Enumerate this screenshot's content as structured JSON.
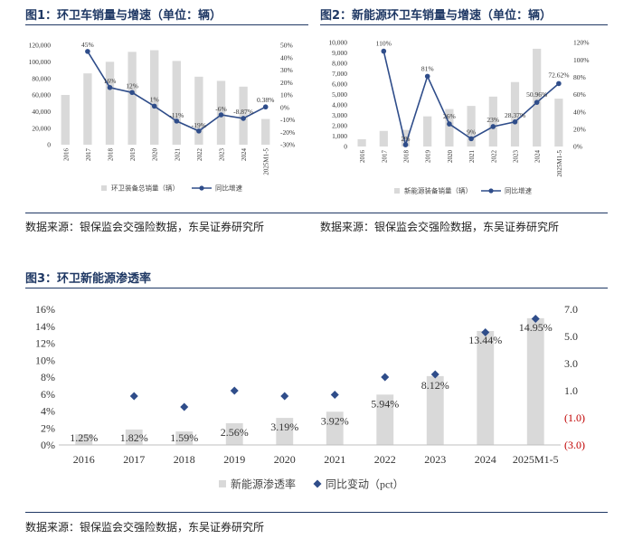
{
  "figures": [
    {
      "title": "图1：环卫车销量与增速（单位：辆）",
      "source": "数据来源：银保监会交强险数据，东吴证券研究所"
    },
    {
      "title": "图2：新能源环卫车销量与增速（单位：辆）",
      "source": "数据来源：银保监会交强险数据，东吴证券研究所"
    },
    {
      "title": "图3：环卫新能源渗透率",
      "source": "数据来源：银保监会交强险数据，东吴证券研究所"
    }
  ],
  "chart_data": [
    {
      "type": "bar",
      "categories": [
        "2016",
        "2017",
        "2018",
        "2019",
        "2020",
        "2021",
        "2022",
        "2023",
        "2024",
        "2025M1-5"
      ],
      "series": [
        {
          "name": "环卫装备总销量（辆）",
          "type": "bar",
          "axis": "left",
          "color": "#d9d9d9",
          "values": [
            60000,
            86000,
            100000,
            112000,
            114000,
            101000,
            82000,
            77000,
            70000,
            31000
          ]
        },
        {
          "name": "同比增速",
          "type": "line",
          "axis": "right",
          "color": "#2f4d8a",
          "values": [
            null,
            45,
            16,
            12,
            1,
            -11,
            -19,
            -6,
            -8.87,
            0.38
          ],
          "labels": [
            "",
            "45%",
            "16%",
            "12%",
            "1%",
            "-11%",
            "-19%",
            "-6%",
            "-8.87%",
            "0.38%"
          ]
        }
      ],
      "yleft": {
        "ticks": [
          0,
          20000,
          40000,
          60000,
          80000,
          100000,
          120000
        ],
        "tick_labels": [
          "0",
          "20,000",
          "40,000",
          "60,000",
          "80,000",
          "100,000",
          "120,000"
        ],
        "lim": [
          0,
          120000
        ]
      },
      "yright": {
        "ticks": [
          -30,
          -20,
          -10,
          0,
          10,
          20,
          30,
          40,
          50
        ],
        "tick_labels": [
          "-30%",
          "-20%",
          "-10%",
          "0%",
          "10%",
          "20%",
          "30%",
          "40%",
          "50%"
        ],
        "lim": [
          -30,
          50
        ]
      },
      "grid": false,
      "legend": "bottom"
    },
    {
      "type": "bar",
      "categories": [
        "2016",
        "2017",
        "2018",
        "2019",
        "2020",
        "2021",
        "2022",
        "2023",
        "2024",
        "2025M1-5"
      ],
      "series": [
        {
          "name": "新能源装备销量（辆）",
          "type": "bar",
          "axis": "left",
          "color": "#d9d9d9",
          "values": [
            700,
            1500,
            1600,
            2900,
            3600,
            3900,
            4800,
            6200,
            9400,
            4600
          ]
        },
        {
          "name": "同比增速",
          "type": "line",
          "axis": "right",
          "color": "#2f4d8a",
          "values": [
            null,
            110,
            2,
            81,
            26,
            9,
            23,
            28.37,
            50.96,
            72.62
          ],
          "labels": [
            "",
            "110%",
            "2%",
            "81%",
            "26%",
            "9%",
            "23%",
            "28.37%",
            "50.96%",
            "72.62%"
          ]
        }
      ],
      "yleft": {
        "ticks": [
          0,
          1000,
          2000,
          3000,
          4000,
          5000,
          6000,
          7000,
          8000,
          9000,
          10000
        ],
        "tick_labels": [
          "0",
          "1,000",
          "2,000",
          "3,000",
          "4,000",
          "5,000",
          "6,000",
          "7,000",
          "8,000",
          "9,000",
          "10,000"
        ],
        "lim": [
          0,
          10000
        ]
      },
      "yright": {
        "ticks": [
          0,
          20,
          40,
          60,
          80,
          100,
          120
        ],
        "tick_labels": [
          "0%",
          "20%",
          "40%",
          "60%",
          "80%",
          "100%",
          "120%"
        ],
        "lim": [
          0,
          120
        ]
      },
      "grid": false,
      "legend": "bottom"
    },
    {
      "type": "bar",
      "categories": [
        "2016",
        "2017",
        "2018",
        "2019",
        "2020",
        "2021",
        "2022",
        "2023",
        "2024",
        "2025M1-5"
      ],
      "series": [
        {
          "name": "新能源渗透率",
          "type": "bar",
          "axis": "left",
          "color": "#d9d9d9",
          "values": [
            1.25,
            1.82,
            1.59,
            2.56,
            3.19,
            3.92,
            5.94,
            8.12,
            13.44,
            14.95
          ],
          "labels": [
            "1.25%",
            "1.82%",
            "1.59%",
            "2.56%",
            "3.19%",
            "3.92%",
            "5.94%",
            "8.12%",
            "13.44%",
            "14.95%"
          ]
        },
        {
          "name": "同比变动（pct）",
          "type": "scatter",
          "axis": "right",
          "color": "#2f4d8a",
          "values": [
            null,
            0.6,
            -0.2,
            1.0,
            0.6,
            0.7,
            2.0,
            2.2,
            5.3,
            6.3
          ]
        }
      ],
      "yleft": {
        "ticks": [
          0,
          2,
          4,
          6,
          8,
          10,
          12,
          14,
          16
        ],
        "tick_labels": [
          "0%",
          "2%",
          "4%",
          "6%",
          "8%",
          "10%",
          "12%",
          "14%",
          "16%"
        ],
        "lim": [
          0,
          16
        ]
      },
      "yright": {
        "ticks": [
          -3,
          -1,
          1,
          3,
          5,
          7
        ],
        "tick_labels": [
          "(3.0)",
          "(1.0)",
          "1.0",
          "3.0",
          "5.0",
          "7.0"
        ],
        "lim": [
          -3,
          7
        ],
        "negative_color": "#c00000"
      },
      "grid": false,
      "legend": "bottom"
    }
  ]
}
